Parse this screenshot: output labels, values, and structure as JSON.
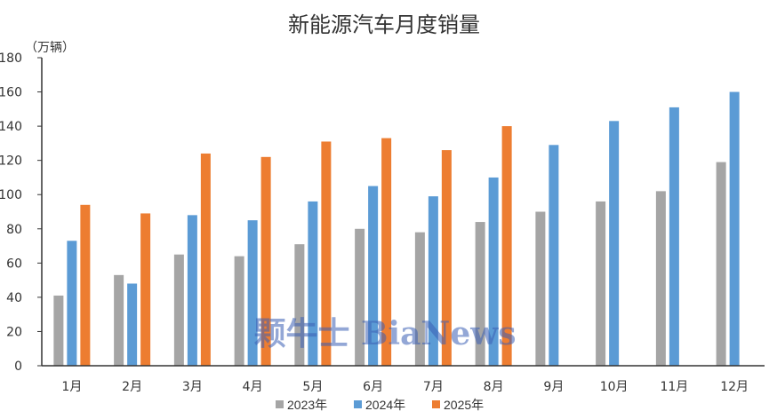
{
  "colors": {
    "2023年": "#a5a5a5",
    "2024年": "#5b9bd5",
    "2025年": "#ed7d31",
    "axis": "#333333",
    "watermark": "#3b5fb4"
  },
  "watermark": "颗牛士 BiaNews",
  "chart_data": {
    "type": "bar",
    "title": "新能源汽车月度销量",
    "unit_label": "（万辆）",
    "xlabel": "",
    "ylabel": "",
    "ylim": [
      0,
      180
    ],
    "yticks": [
      0,
      20,
      40,
      60,
      80,
      100,
      120,
      140,
      160,
      180
    ],
    "grid": false,
    "legend_position": "bottom",
    "categories": [
      "1月",
      "2月",
      "3月",
      "4月",
      "5月",
      "6月",
      "7月",
      "8月",
      "9月",
      "10月",
      "11月",
      "12月"
    ],
    "series": [
      {
        "name": "2023年",
        "values": [
          41,
          53,
          65,
          64,
          71,
          80,
          78,
          84,
          90,
          96,
          102,
          119
        ]
      },
      {
        "name": "2024年",
        "values": [
          73,
          48,
          88,
          85,
          96,
          105,
          99,
          110,
          129,
          143,
          151,
          160
        ]
      },
      {
        "name": "2025年",
        "values": [
          94,
          89,
          124,
          122,
          131,
          133,
          126,
          140,
          null,
          null,
          null,
          null
        ]
      }
    ]
  }
}
